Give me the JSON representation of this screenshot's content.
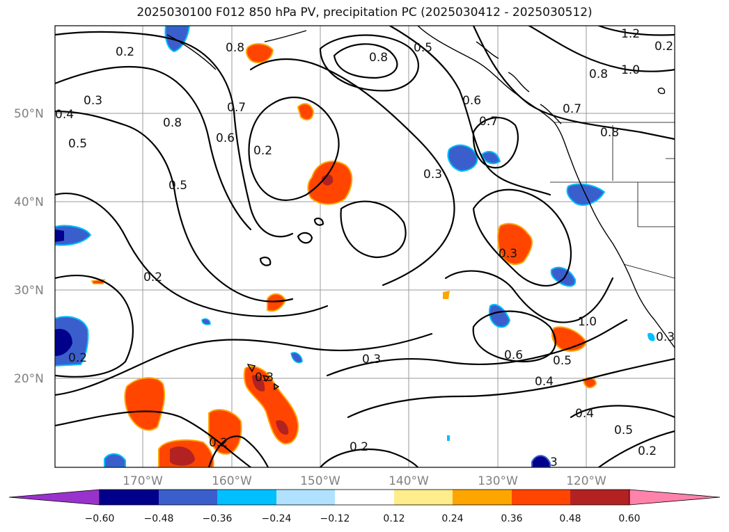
{
  "title": "2025030100 F012 850 hPa PV, precipitation PC (2025030412 - 2025030512)",
  "lat_labels": [
    "50°N",
    "40°N",
    "30°N",
    "20°N"
  ],
  "lon_labels": [
    "170°W",
    "160°W",
    "150°W",
    "140°W",
    "130°W",
    "120°W"
  ],
  "colorbar": {
    "ticks": [
      "−0.60",
      "−0.48",
      "−0.36",
      "−0.24",
      "−0.12",
      "0.12",
      "0.24",
      "0.36",
      "0.48",
      "0.60"
    ],
    "colors": [
      "#9932cc",
      "#00008b",
      "#3a5fcd",
      "#00bfff",
      "#b0e2ff",
      "#ffffff",
      "#ffec8b",
      "#ffa500",
      "#ff4500",
      "#b22222",
      "#ff82ab"
    ]
  },
  "contour_labels": [
    "0.2",
    "0.3",
    "0.4",
    "0.5",
    "0.8",
    "0.6",
    "0.7",
    "0.8",
    "0.5",
    "0.8",
    "0.2",
    "0.6",
    "0.5",
    "0.7",
    "0.3",
    "0.8",
    "1.0",
    "1.2",
    "0.7",
    "0.8",
    "0.2",
    "0.3",
    "0.3",
    "0.2",
    "0.3",
    "1.0",
    "0.6",
    "0.5",
    "0.4",
    "0.4",
    "0.5",
    "0.2",
    "0.2",
    "0.2",
    "0.3",
    "0.2",
    "3"
  ]
}
